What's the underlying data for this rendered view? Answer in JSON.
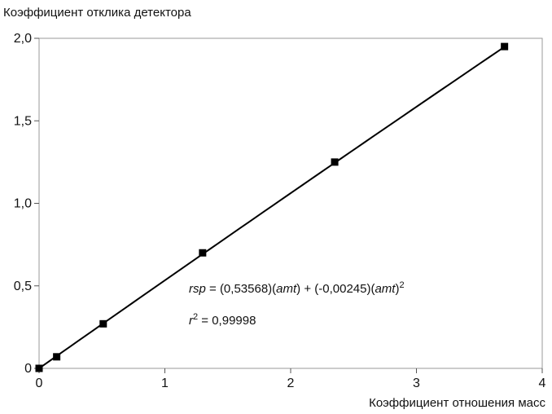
{
  "chart_data": {
    "type": "scatter",
    "title": "",
    "ylabel": "Коэффициент отклика детектора",
    "xlabel": "Коэффициент отношения масс",
    "xlim": [
      0,
      4
    ],
    "ylim": [
      0,
      2
    ],
    "x_ticks": [
      "0",
      "1",
      "2",
      "3",
      "4"
    ],
    "y_ticks": [
      "0",
      "0,5",
      "1,0",
      "1,5",
      "2,0"
    ],
    "grid": false,
    "legend": "none",
    "points": [
      {
        "x": 0.0,
        "y": 0.0
      },
      {
        "x": 0.14,
        "y": 0.07
      },
      {
        "x": 0.51,
        "y": 0.27
      },
      {
        "x": 1.3,
        "y": 0.7
      },
      {
        "x": 2.35,
        "y": 1.25
      },
      {
        "x": 3.7,
        "y": 1.95
      }
    ],
    "fit": {
      "a": 0.53568,
      "b": -0.00245,
      "x_start": 0,
      "x_end": 3.7
    },
    "annotations": {
      "equation": {
        "rsp": "rsp",
        "eq1": " = (0,53568)(",
        "amt1": "amt",
        "mid": ") + (-0,00245)(",
        "amt2": "amt",
        "close": ")",
        "sup": "2"
      },
      "r2": {
        "r": "r",
        "sup": "2",
        "value": " = 0,99998"
      }
    }
  }
}
